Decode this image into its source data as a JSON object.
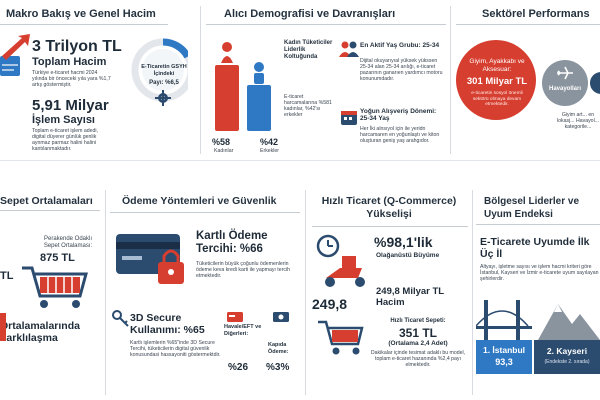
{
  "sections": {
    "macro": {
      "title": "Makro Bakış ve Genel Hacim",
      "stat1": "3 Trilyon TL",
      "stat1_label": "Toplam Hacim",
      "stat1_desc": "Türkiye e-ticaret hacmi 2024 yılında bir önceceki yıla yara %1,7 artış göstermiştir.",
      "stat2": "5,91 Milyar",
      "stat2_label": "İşlem Sayısı",
      "stat2_desc": "Toplam e-ticaret işlem adedi, digital düyerer günlük genlik aynmaz parmaz halini halini kantılanmaktadır.",
      "donut_title": "E-Ticaretin GSYH İçindeki",
      "donut_value": "Payı: %6,5"
    },
    "demographic": {
      "title": "Alıcı Demografisi ve Davranışları",
      "women_leader_title": "Kadın Tüketiciler Liderlik Koltuğunda",
      "women_leader_desc": "E-ticaret harcamalarına %581 kadınlar, %42'sı erkekler",
      "women_pct": "%58",
      "women_label": "Kadınlar",
      "men_pct": "%42",
      "men_label": "Erkekler",
      "active_age_title": "En Aktif Yaş Grubu: 25-34",
      "active_age_desc": "Dijital okuyarıyıal yüksek yükssen 25-34 alan 25-34 arılığı, e-ticaret pazarının ganarıen yardımcı motoru konunumdadır.",
      "peak_title": "Yoğun Alışveriş Dönemi: 25-34 Yaş",
      "peak_desc": "Her İki alnsıyol için ile yeridn harcamaren en yoğunlaştı ve kiton oluşturan geniş yaş arahgıdor."
    },
    "sector": {
      "title": "Sektörel Performans",
      "featured_label": "Giyim, Ayakkabı ve Aksesuar:",
      "featured_value": "301 Milyar TL",
      "featured_desc": "e-ticaretin sosyol önemli sektörü olmaya devam etmektedir.",
      "airline_label": "Havayolları",
      "bottom_text": "Giyim art... en lokasj... Havayol... kategorile..."
    },
    "basket": {
      "title": "Sepet Ortalamaları",
      "retail_label": "Perakende Odaklı Sepet Ortalaması:",
      "retail_value": "875 TL",
      "left_value": "TL",
      "bottom_title": "Ortalamalarında Farklılaşma"
    },
    "payment": {
      "title": "Ödeme Yöntemleri ve Güvenlik",
      "card_title": "Kartlı Ödeme Tercihi: %66",
      "card_desc": "Tüketicilerin büyük çoğunlu ödemenlerin ödeme keva kredi karti ile yapmayı tercih etmektedir.",
      "secure_title": "3D Secure Kullanımı: %65",
      "secure_desc": "Kartlı işlemlerin %65\"inde 3D Secure Tercihi, tüketicilerin digital güvenlik konusundasi hassayoniti göstermektdir.",
      "eft_label": "Havale/EFT ve Diğerleri:",
      "eft_value": "%26",
      "cod_label": "Kapıda Ödeme:",
      "cod_value": "%3%"
    },
    "qcommerce": {
      "title": "Hızlı Ticaret (Q-Commerce) Yükselişi",
      "growth_value": "%98,1'lik",
      "growth_label": "Olağanüstü Büyüme",
      "volume_value": "249,8",
      "volume_text": "249,8 Milyar TL Hacim",
      "basket_label": "Hızlı Ticaret Sepeti:",
      "basket_value": "351 TL",
      "basket_sub": "(Ortalama 2,4 Adet)",
      "basket_desc": "Dakikalar içinde tesimat adaklı bu model, toplam e-ticaret hazanında %2,4 payı elmektedir."
    },
    "regional": {
      "title": "Bölgesel Liderler ve Uyum Endeksi",
      "subtitle": "E-Ticarete Uyumde İlk Üç İl",
      "desc": "Altyayı, işletme sayısı ve işlem hacmi kriteri göre İstanbul, Kayseri ve İzmir e-ticarete uyum sayılayan şehirlerdir.",
      "rank1": "1. İstanbul",
      "rank1_value": "93,3",
      "rank2": "2. Kayseri",
      "rank2_sub": "(Endekste 2. sırada)"
    }
  },
  "colors": {
    "accent_red": "#d63e2f",
    "navy": "#2b4b6f",
    "blue": "#2f79c4",
    "gray": "#8a949e"
  }
}
